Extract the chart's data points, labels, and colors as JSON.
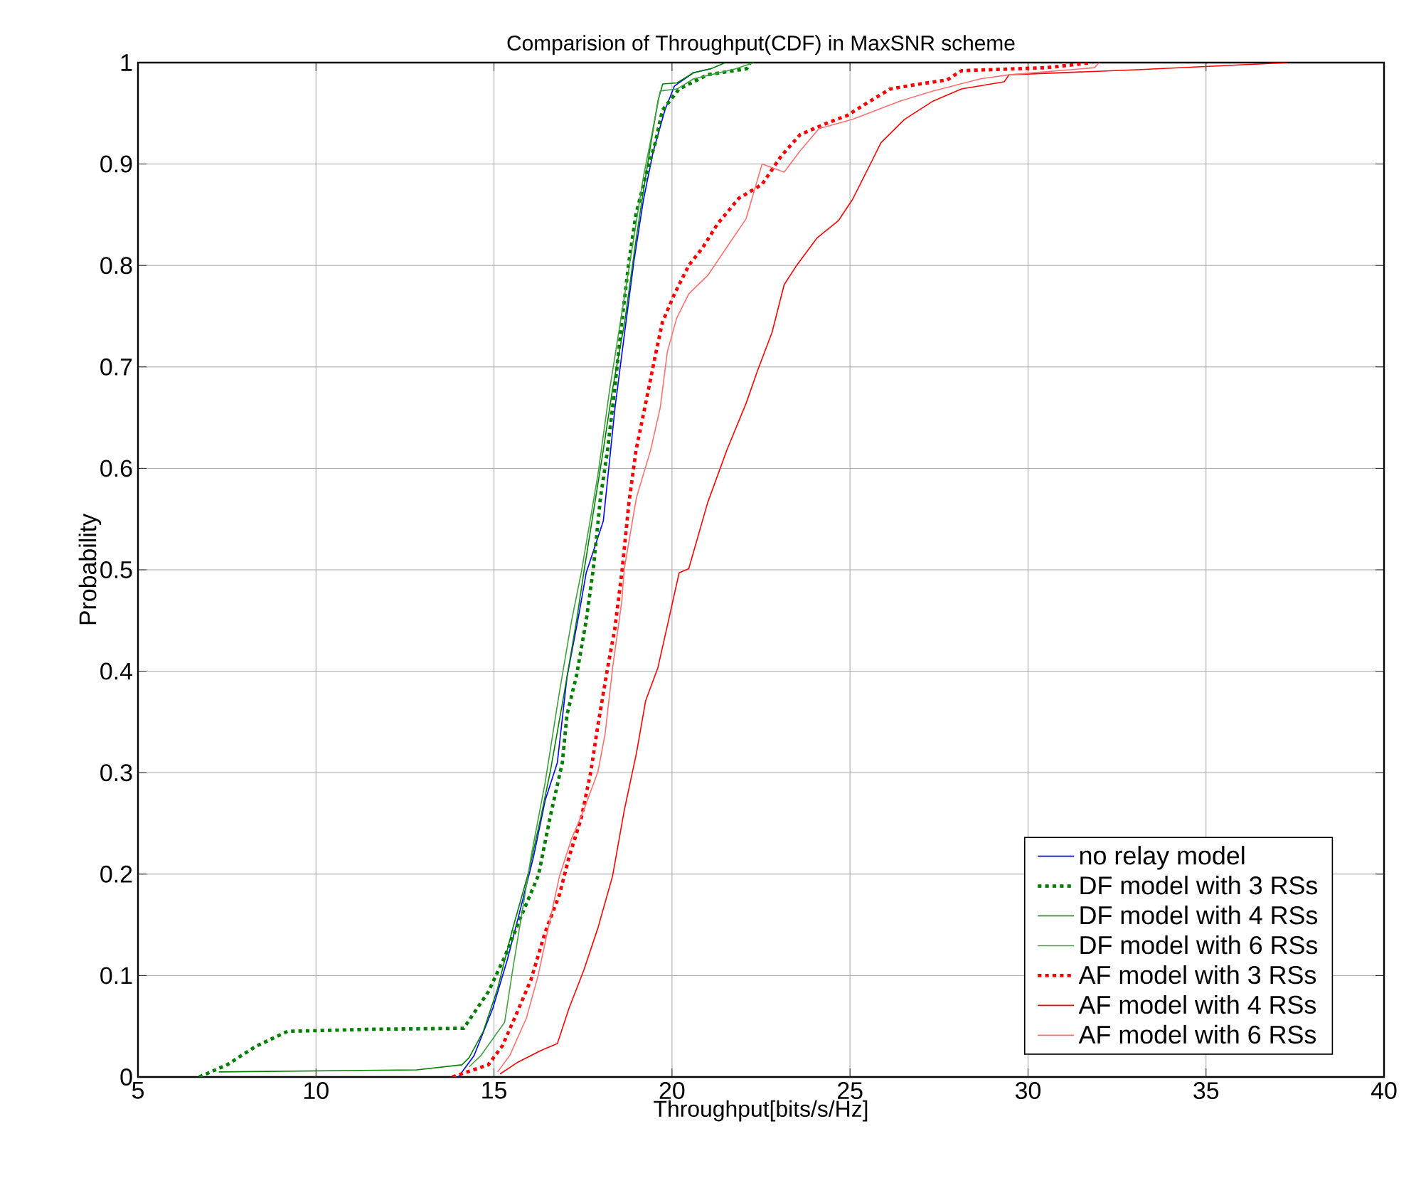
{
  "chart_data": {
    "type": "line",
    "title": "Comparision of Throughput(CDF) in MaxSNR scheme",
    "xlabel": "Throughput[bits/s/Hz]",
    "ylabel": "Probability",
    "xlim": [
      5,
      40
    ],
    "ylim": [
      0,
      1
    ],
    "xticks": [
      5,
      10,
      15,
      20,
      25,
      30,
      35,
      40
    ],
    "yticks": [
      0,
      0.1,
      0.2,
      0.3,
      0.4,
      0.5,
      0.6,
      0.7,
      0.8,
      0.9,
      1
    ],
    "grid": true,
    "legend": "bottom right",
    "series": [
      {
        "name": "no relay model",
        "color": "#0000ff",
        "line_style": "solid",
        "x": [
          14.0,
          14.44,
          14.97,
          15.37,
          15.71,
          16.11,
          16.44,
          16.78,
          17.05,
          17.38,
          17.59,
          18.07,
          18.4,
          18.67,
          18.93,
          19.2,
          19.47,
          19.8,
          20.07,
          20.6,
          21.1
        ],
        "values": [
          0.0,
          0.021,
          0.068,
          0.115,
          0.161,
          0.217,
          0.273,
          0.31,
          0.394,
          0.455,
          0.497,
          0.548,
          0.66,
          0.734,
          0.804,
          0.865,
          0.912,
          0.953,
          0.977,
          0.99,
          0.994
        ]
      },
      {
        "name": "DF model with 3 RSs",
        "color": "#008000",
        "line_style": "dotted",
        "x": [
          6.72,
          7.5,
          8.3,
          9.2,
          11.5,
          14.15,
          14.84,
          15.31,
          15.71,
          16.25,
          16.57,
          16.92,
          17.05,
          17.32,
          17.59,
          17.79,
          17.99,
          18.19,
          18.39,
          18.59,
          18.79,
          18.99,
          19.26,
          19.53,
          19.73,
          20.2,
          21.0,
          22.1,
          22.2
        ],
        "values": [
          0.0,
          0.012,
          0.03,
          0.045,
          0.047,
          0.048,
          0.084,
          0.119,
          0.154,
          0.199,
          0.255,
          0.31,
          0.357,
          0.396,
          0.45,
          0.501,
          0.571,
          0.618,
          0.678,
          0.744,
          0.804,
          0.851,
          0.888,
          0.921,
          0.953,
          0.974,
          0.988,
          0.994,
          1.0
        ]
      },
      {
        "name": "DF model with 4 RSs",
        "color": "#008000",
        "line_style": "solid",
        "x": [
          7.27,
          12.83,
          14.1,
          14.3,
          14.7,
          15.1,
          15.5,
          15.98,
          16.31,
          16.58,
          16.98,
          17.32,
          17.52,
          18.07,
          18.33,
          18.67,
          19.0,
          19.2,
          19.41,
          19.61,
          19.74,
          20.14,
          20.61,
          21.1,
          21.5
        ],
        "values": [
          0.005,
          0.007,
          0.012,
          0.019,
          0.045,
          0.087,
          0.143,
          0.203,
          0.255,
          0.301,
          0.38,
          0.45,
          0.497,
          0.618,
          0.678,
          0.744,
          0.828,
          0.874,
          0.921,
          0.963,
          0.979,
          0.98,
          0.99,
          0.994,
          1.0
        ]
      },
      {
        "name": "DF model with 6 RSs",
        "color": "#40a040",
        "line_style": "solid",
        "x": [
          14.3,
          14.63,
          15.3,
          15.5,
          16.04,
          16.44,
          16.84,
          17.18,
          17.45,
          17.92,
          18.25,
          18.59,
          18.93,
          19.2,
          19.41,
          19.67,
          20.14,
          20.61,
          21.8,
          22.3
        ],
        "values": [
          0.01,
          0.021,
          0.054,
          0.1,
          0.217,
          0.291,
          0.38,
          0.45,
          0.497,
          0.594,
          0.678,
          0.753,
          0.828,
          0.888,
          0.925,
          0.972,
          0.974,
          0.984,
          0.994,
          1.0
        ]
      },
      {
        "name": "AF model with 3 RSs",
        "color": "#ff0000",
        "line_style": "dotted",
        "x": [
          13.83,
          14.84,
          15.24,
          15.64,
          16.04,
          16.44,
          16.84,
          17.11,
          17.45,
          17.72,
          17.92,
          18.19,
          18.39,
          18.59,
          18.79,
          18.99,
          19.26,
          19.53,
          19.73,
          20.07,
          20.47,
          20.87,
          21.28,
          21.87,
          22.53,
          23.07,
          23.6,
          24.4,
          24.93,
          25.47,
          26.13,
          26.8,
          27.73,
          28.13,
          30.53,
          31.8
        ],
        "values": [
          0.0,
          0.012,
          0.031,
          0.063,
          0.096,
          0.143,
          0.18,
          0.217,
          0.255,
          0.301,
          0.347,
          0.403,
          0.441,
          0.497,
          0.566,
          0.618,
          0.664,
          0.711,
          0.744,
          0.772,
          0.8,
          0.818,
          0.841,
          0.866,
          0.88,
          0.908,
          0.929,
          0.941,
          0.948,
          0.96,
          0.974,
          0.978,
          0.983,
          0.992,
          0.995,
          1.0
        ]
      },
      {
        "name": "AF model with 4 RSs",
        "color": "#ff0000",
        "line_style": "solid",
        "x": [
          15.17,
          15.64,
          16.31,
          16.78,
          17.11,
          17.52,
          17.92,
          18.33,
          18.66,
          19.0,
          19.26,
          19.6,
          19.87,
          20.2,
          20.47,
          21.0,
          21.54,
          22.08,
          22.41,
          22.81,
          23.15,
          23.5,
          24.07,
          24.67,
          25.07,
          25.6,
          25.87,
          26.53,
          27.33,
          28.13,
          29.33,
          29.47,
          33.07,
          37.3
        ],
        "values": [
          0.003,
          0.014,
          0.026,
          0.033,
          0.068,
          0.105,
          0.147,
          0.198,
          0.263,
          0.319,
          0.371,
          0.403,
          0.445,
          0.497,
          0.501,
          0.566,
          0.618,
          0.664,
          0.697,
          0.734,
          0.781,
          0.8,
          0.827,
          0.844,
          0.865,
          0.902,
          0.921,
          0.944,
          0.962,
          0.974,
          0.981,
          0.988,
          0.993,
          1.0
        ]
      },
      {
        "name": "AF model with 6 RSs",
        "color": "#ff7070",
        "line_style": "solid",
        "x": [
          15.1,
          15.44,
          15.91,
          16.24,
          16.44,
          16.84,
          17.18,
          17.52,
          17.92,
          18.12,
          18.33,
          18.59,
          18.66,
          19.0,
          19.4,
          19.67,
          19.87,
          20.13,
          20.47,
          21.0,
          21.54,
          22.08,
          22.53,
          23.15,
          23.6,
          24.13,
          25.07,
          26.4,
          27.33,
          28.67,
          29.47,
          31.87,
          32.0
        ],
        "values": [
          0.005,
          0.021,
          0.058,
          0.1,
          0.133,
          0.198,
          0.235,
          0.263,
          0.301,
          0.338,
          0.403,
          0.469,
          0.501,
          0.571,
          0.618,
          0.66,
          0.715,
          0.748,
          0.772,
          0.79,
          0.818,
          0.846,
          0.9,
          0.892,
          0.913,
          0.935,
          0.944,
          0.962,
          0.972,
          0.984,
          0.988,
          0.995,
          1.0
        ]
      }
    ]
  }
}
